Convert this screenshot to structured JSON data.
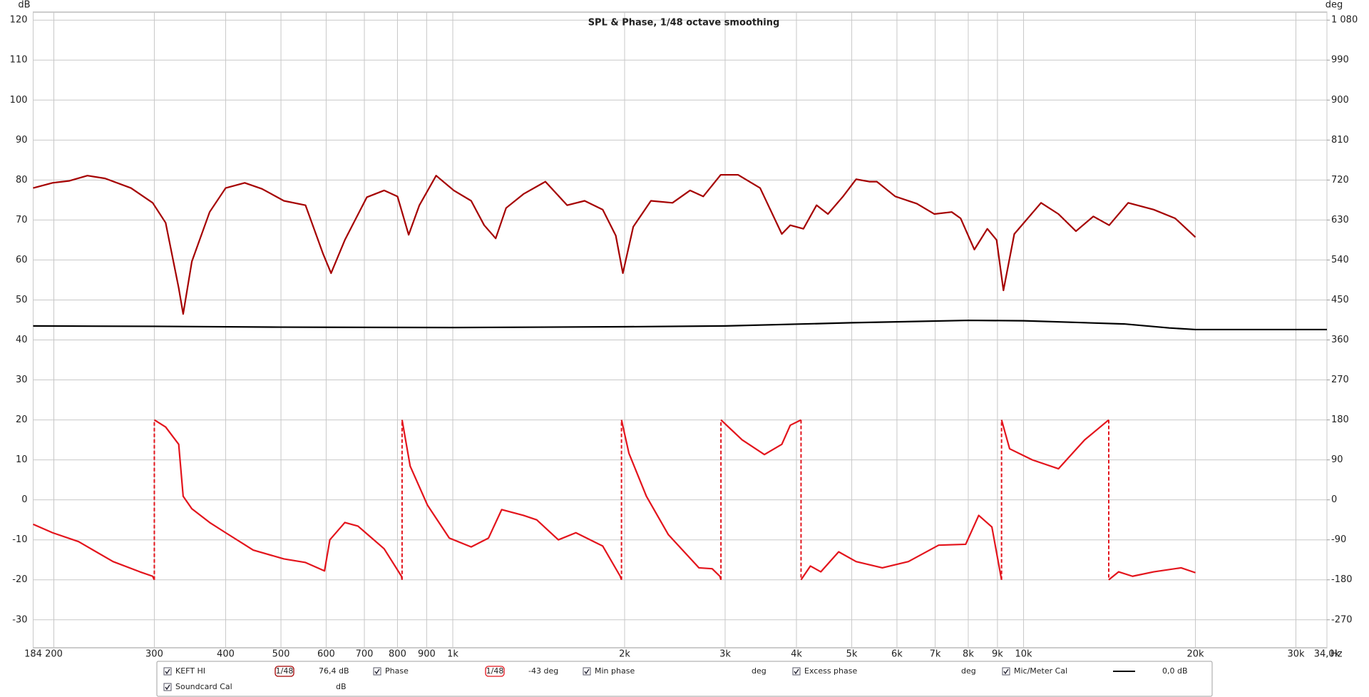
{
  "chart_data": {
    "type": "line",
    "title": "SPL & Phase, 1/48 octave smoothing",
    "y_unit": "dB",
    "y2_unit": "deg",
    "x_unit": "Hz",
    "xscale": "log",
    "xlim": [
      184,
      34000
    ],
    "xticks": [
      184,
      200,
      300,
      400,
      500,
      600,
      700,
      800,
      900,
      {
        "value": 1000,
        "label": "1k"
      },
      {
        "value": 2000,
        "label": "2k"
      },
      {
        "value": 3000,
        "label": "3k"
      },
      {
        "value": 4000,
        "label": "4k"
      },
      {
        "value": 5000,
        "label": "5k"
      },
      {
        "value": 6000,
        "label": "6k"
      },
      {
        "value": 7000,
        "label": "7k"
      },
      {
        "value": 8000,
        "label": "8k"
      },
      {
        "value": 9000,
        "label": "9k"
      },
      {
        "value": 10000,
        "label": "10k"
      },
      {
        "value": 20000,
        "label": "20k"
      },
      {
        "value": 30000,
        "label": "30k"
      },
      {
        "value": 34000,
        "label": "34,0k"
      }
    ],
    "ylim": [
      -37,
      122
    ],
    "yticks": [
      -30,
      -20,
      -10,
      0,
      10,
      20,
      30,
      40,
      50,
      60,
      70,
      80,
      90,
      100,
      110,
      120
    ],
    "y2lim": [
      -333,
      1098
    ],
    "y2ticks": [
      -270,
      -180,
      -90,
      0,
      90,
      180,
      270,
      360,
      450,
      540,
      630,
      720,
      810,
      900,
      990,
      {
        "value": 1080,
        "label": "1 080"
      }
    ],
    "grid": true,
    "series": [
      {
        "name": "KEFT HI",
        "color": "#a50000",
        "smoothing": "1/48",
        "readout": "76,4 dB",
        "x": [
          184,
          199,
          213,
          229,
          246,
          273,
          298,
          314,
          331,
          337,
          349,
          375,
          400,
          432,
          463,
          506,
          552,
          592,
          612,
          647,
          707,
          758,
          800,
          837,
          874,
          935,
          1004,
          1077,
          1135,
          1189,
          1240,
          1330,
          1453,
          1586,
          1702,
          1831,
          1930,
          1986,
          2071,
          2224,
          2426,
          2604,
          2747,
          2947,
          3161,
          3455,
          3771,
          3902,
          4114,
          4338,
          4542,
          4828,
          5089,
          5366,
          5533,
          5958,
          6500,
          6975,
          7484,
          7759,
          8199,
          8640,
          8969,
          9220,
          9633,
          10730,
          11511,
          12353,
          13250,
          14125,
          15250,
          16900,
          18440,
          20000
        ],
        "values": [
          78.0,
          79.3,
          79.8,
          81.1,
          80.4,
          78.0,
          74.3,
          69.3,
          53.0,
          46.5,
          59.6,
          72.0,
          78.0,
          79.3,
          77.8,
          74.8,
          73.7,
          61.7,
          56.7,
          65.0,
          75.7,
          77.4,
          75.9,
          66.3,
          73.7,
          81.1,
          77.4,
          74.8,
          68.7,
          65.4,
          73.0,
          76.5,
          79.6,
          73.7,
          74.8,
          72.6,
          66.1,
          56.7,
          68.3,
          74.8,
          74.3,
          77.4,
          75.9,
          81.3,
          81.3,
          78.0,
          66.5,
          68.7,
          67.8,
          73.7,
          71.5,
          75.9,
          80.2,
          79.6,
          79.6,
          75.9,
          74.1,
          71.5,
          72.0,
          70.4,
          62.6,
          67.8,
          65.0,
          52.4,
          66.5,
          74.3,
          71.5,
          67.2,
          70.9,
          68.7,
          74.3,
          72.6,
          70.4,
          65.7
        ]
      },
      {
        "name": "Phase",
        "color": "#e3141c",
        "axis": "y2",
        "smoothing": "1/48",
        "readout": "-43 deg",
        "x": [
          184,
          199,
          221,
          254,
          283,
          298,
          300,
          null,
          300,
          314,
          331,
          337,
          349,
          375,
          400,
          447,
          506,
          552,
          596,
          609,
          647,
          682,
          758,
          813,
          815,
          null,
          815,
          842,
          903,
          986,
          1077,
          1155,
          1218,
          1330,
          1403,
          1531,
          1643,
          1831,
          1965,
          1975,
          null,
          1975,
          2035,
          2184,
          2385,
          2514,
          2699,
          2847,
          2937,
          2950,
          null,
          2950,
          3213,
          3515,
          3771,
          3902,
          4075,
          null,
          4075,
          4232,
          4414,
          4743,
          5089,
          5657,
          6283,
          7099,
          7917,
          8345,
          8800,
          9150,
          null,
          9150,
          9453,
          10359,
          11511,
          12793,
          14100,
          null,
          14100,
          14676,
          15520,
          16900,
          18880,
          20000
        ],
        "values": [
          -55,
          -74,
          -94,
          -139,
          -162,
          -172,
          -180,
          null,
          180,
          164,
          125,
          8,
          -20,
          -51,
          -74,
          -113,
          -133,
          -141,
          -160,
          -90,
          -51,
          -59,
          -110,
          -172,
          -180,
          null,
          180,
          76,
          -12,
          -86,
          -106,
          -86,
          -22,
          -35,
          -45,
          -90,
          -74,
          -104,
          -172,
          -180,
          null,
          180,
          105,
          8,
          -78,
          -110,
          -153,
          -155,
          -172,
          -180,
          null,
          180,
          135,
          102,
          125,
          168,
          180,
          null,
          -180,
          -149,
          -162,
          -117,
          -139,
          -153,
          -139,
          -102,
          -100,
          -35,
          -61,
          -180,
          null,
          180,
          115,
          90,
          70,
          135,
          180,
          null,
          -180,
          -162,
          -172,
          -162,
          -153,
          -164
        ]
      },
      {
        "name": "Mic/Meter Cal",
        "color": "#000000",
        "readout": "0,0 dB",
        "x": [
          184,
          300,
          500,
          1000,
          2000,
          3000,
          5000,
          8000,
          10000,
          15000,
          18000,
          20000,
          34000
        ],
        "values": [
          43.5,
          43.4,
          43.2,
          43.1,
          43.3,
          43.5,
          44.3,
          44.9,
          44.8,
          44.0,
          43.0,
          42.6,
          42.6
        ]
      }
    ],
    "inactive_items": [
      {
        "name": "Min phase",
        "unit": "deg"
      },
      {
        "name": "Excess phase",
        "unit": "deg"
      },
      {
        "name": "Soundcard Cal",
        "unit": "dB"
      }
    ]
  }
}
